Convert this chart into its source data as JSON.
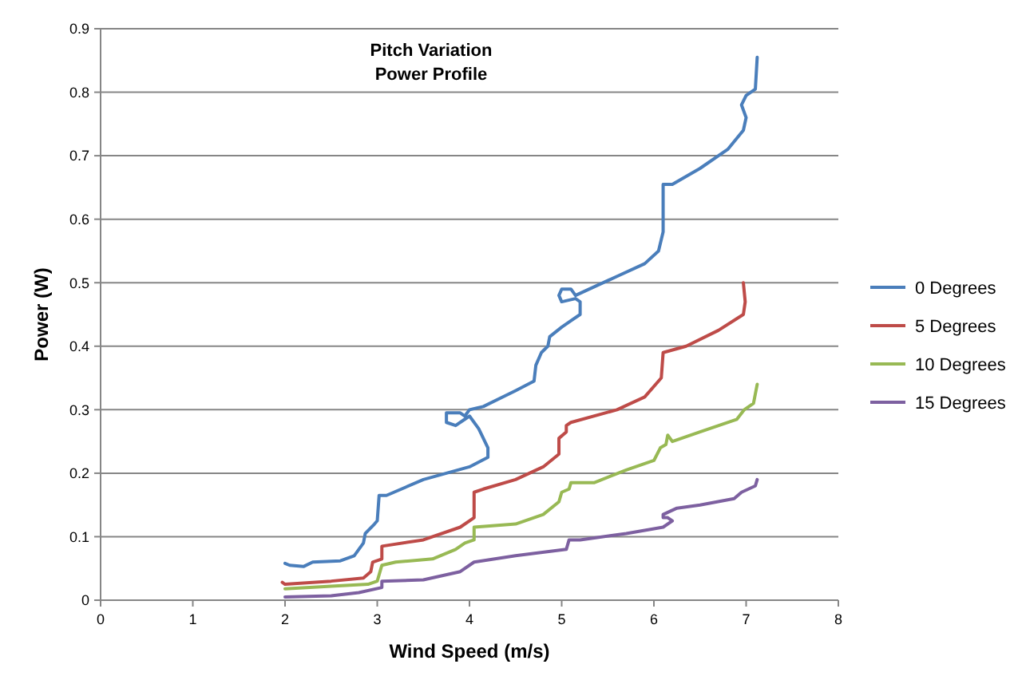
{
  "chart_data": {
    "type": "line",
    "title": "Pitch Variation\nPower Profile",
    "xlabel": "Wind Speed (m/s)",
    "ylabel": "Power (W)",
    "xlim": [
      0,
      8
    ],
    "xticks": [
      0,
      1,
      2,
      3,
      4,
      5,
      6,
      7,
      8
    ],
    "ylim": [
      0,
      0.9
    ],
    "yticks": [
      0,
      0.1,
      0.2,
      0.3,
      0.4,
      0.5,
      0.6,
      0.7,
      0.8,
      0.9
    ],
    "grid": "y",
    "legend": "right",
    "marker": "none",
    "line_style": "solid",
    "series": [
      {
        "name": "0 Degrees",
        "color": "#4a7ebb",
        "x": [
          2.0,
          2.05,
          2.2,
          2.3,
          2.6,
          2.75,
          2.85,
          2.87,
          2.97,
          3.0,
          3.02,
          3.1,
          3.5,
          4.0,
          4.2,
          4.2,
          4.1,
          4.0,
          3.95,
          3.85,
          3.75,
          3.75,
          3.9,
          3.95,
          4.0,
          4.15,
          4.5,
          4.7,
          4.72,
          4.78,
          4.85,
          4.87,
          5.0,
          5.1,
          5.2,
          5.2,
          5.15,
          5.0,
          4.97,
          5.0,
          5.1,
          5.15,
          5.3,
          5.6,
          5.9,
          6.05,
          6.1,
          6.1,
          6.2,
          6.5,
          6.8,
          6.97,
          7.0,
          6.95,
          7.0,
          7.1,
          7.12
        ],
        "values": [
          0.058,
          0.055,
          0.053,
          0.06,
          0.062,
          0.07,
          0.09,
          0.105,
          0.12,
          0.125,
          0.165,
          0.165,
          0.19,
          0.21,
          0.225,
          0.24,
          0.27,
          0.29,
          0.285,
          0.275,
          0.28,
          0.295,
          0.295,
          0.29,
          0.3,
          0.305,
          0.33,
          0.345,
          0.37,
          0.39,
          0.4,
          0.415,
          0.43,
          0.44,
          0.45,
          0.47,
          0.475,
          0.47,
          0.48,
          0.49,
          0.49,
          0.48,
          0.49,
          0.51,
          0.53,
          0.55,
          0.58,
          0.655,
          0.655,
          0.68,
          0.71,
          0.74,
          0.76,
          0.78,
          0.795,
          0.805,
          0.855
        ]
      },
      {
        "name": "5 Degrees",
        "color": "#be4b48",
        "x": [
          1.97,
          2.0,
          2.5,
          2.85,
          2.93,
          2.95,
          3.05,
          3.05,
          3.5,
          3.9,
          4.05,
          4.05,
          4.15,
          4.5,
          4.8,
          4.97,
          4.97,
          5.05,
          5.05,
          5.1,
          5.6,
          5.9,
          6.08,
          6.1,
          6.35,
          6.7,
          6.97,
          6.99,
          6.97
        ],
        "values": [
          0.028,
          0.025,
          0.03,
          0.035,
          0.045,
          0.06,
          0.065,
          0.085,
          0.095,
          0.115,
          0.13,
          0.17,
          0.175,
          0.19,
          0.21,
          0.23,
          0.255,
          0.265,
          0.275,
          0.28,
          0.3,
          0.32,
          0.35,
          0.39,
          0.4,
          0.425,
          0.45,
          0.47,
          0.5
        ]
      },
      {
        "name": "10 Degrees",
        "color": "#98b954",
        "x": [
          2.0,
          2.5,
          2.9,
          3.0,
          3.05,
          3.2,
          3.6,
          3.85,
          3.95,
          4.05,
          4.05,
          4.5,
          4.8,
          4.97,
          5.0,
          5.08,
          5.1,
          5.35,
          5.7,
          6.0,
          6.07,
          6.13,
          6.15,
          6.2,
          6.5,
          6.9,
          6.98,
          7.08,
          7.12
        ],
        "values": [
          0.018,
          0.022,
          0.025,
          0.03,
          0.055,
          0.06,
          0.065,
          0.08,
          0.09,
          0.095,
          0.115,
          0.12,
          0.135,
          0.155,
          0.17,
          0.175,
          0.185,
          0.185,
          0.205,
          0.22,
          0.24,
          0.245,
          0.26,
          0.25,
          0.265,
          0.285,
          0.3,
          0.31,
          0.34
        ]
      },
      {
        "name": "15 Degrees",
        "color": "#7d60a0",
        "x": [
          2.0,
          2.5,
          2.8,
          3.05,
          3.05,
          3.5,
          3.9,
          4.05,
          4.5,
          5.05,
          5.08,
          5.2,
          5.7,
          6.1,
          6.2,
          6.15,
          6.1,
          6.1,
          6.25,
          6.5,
          6.87,
          6.95,
          7.1,
          7.12
        ],
        "values": [
          0.005,
          0.007,
          0.012,
          0.02,
          0.03,
          0.032,
          0.045,
          0.06,
          0.07,
          0.08,
          0.095,
          0.095,
          0.105,
          0.115,
          0.125,
          0.13,
          0.13,
          0.135,
          0.145,
          0.15,
          0.16,
          0.17,
          0.18,
          0.19
        ]
      }
    ]
  }
}
